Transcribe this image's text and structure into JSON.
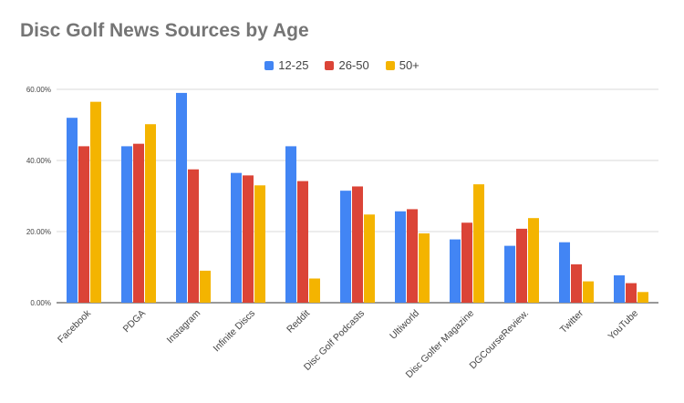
{
  "chart_data": {
    "type": "bar",
    "title": "Disc Golf News Sources by Age",
    "xlabel": "",
    "ylabel": "",
    "ylim": [
      0,
      0.6
    ],
    "yticks": [
      "0.00%",
      "20.00%",
      "40.00%",
      "60.00%"
    ],
    "grid": true,
    "legend_position": "top",
    "categories": [
      "Facebook",
      "PDGA",
      "Instagram",
      "Infinite Discs",
      "Reddit",
      "Disc Golf Podcasts",
      "Ultiworld",
      "Disc Golfer Magazine",
      "DGCourseReview.",
      "Twitter",
      "YouTube"
    ],
    "series": [
      {
        "name": "12-25",
        "color": "#4285f4",
        "values": [
          0.52,
          0.44,
          0.59,
          0.365,
          0.44,
          0.315,
          0.257,
          0.178,
          0.16,
          0.17,
          0.077
        ]
      },
      {
        "name": "26-50",
        "color": "#db4437",
        "values": [
          0.44,
          0.447,
          0.375,
          0.358,
          0.342,
          0.327,
          0.263,
          0.225,
          0.208,
          0.108,
          0.055
        ]
      },
      {
        "name": "50+",
        "color": "#f4b400",
        "values": [
          0.565,
          0.502,
          0.09,
          0.33,
          0.068,
          0.248,
          0.195,
          0.333,
          0.238,
          0.06,
          0.03
        ]
      }
    ]
  }
}
